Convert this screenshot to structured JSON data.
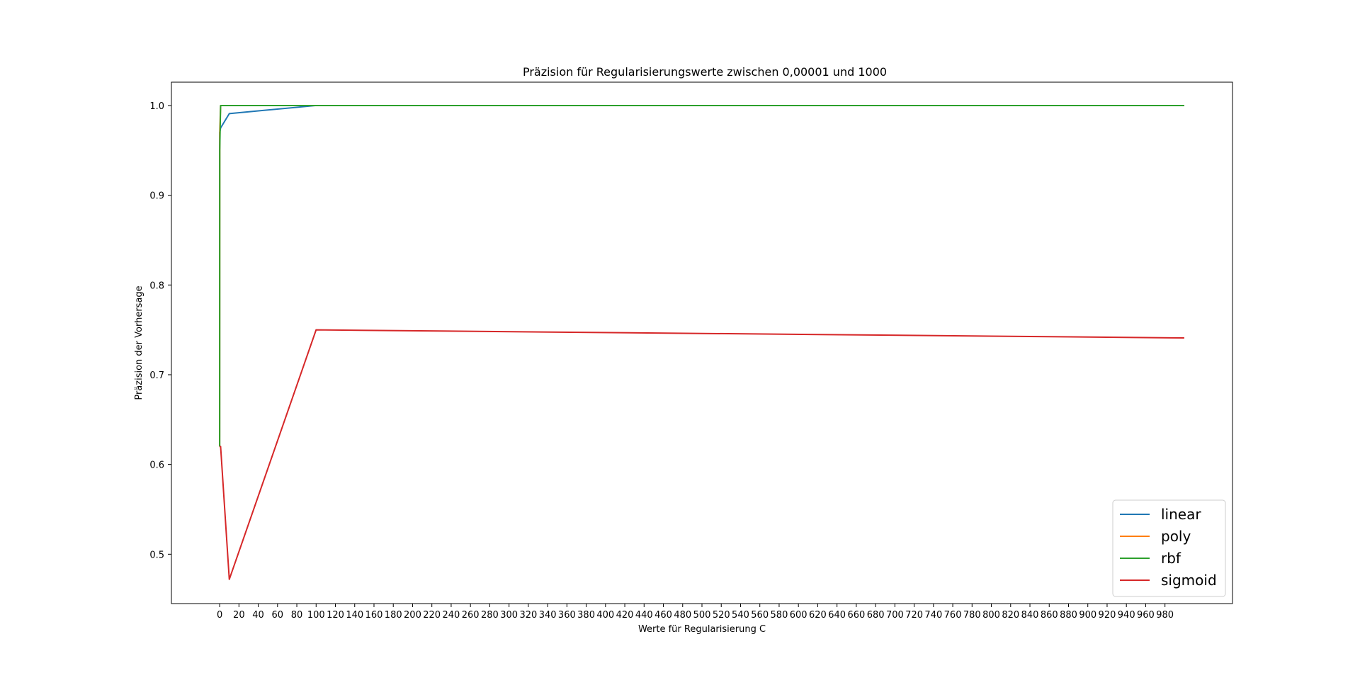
{
  "chart_data": {
    "type": "line",
    "title": "Präzision für Regularisierungswerte zwischen 0,00001 und 1000",
    "xlabel": "Werte für Regularisierung C",
    "ylabel": "Präzision der Vorhersage",
    "xlim": [
      -50,
      1050
    ],
    "ylim": [
      0.445,
      1.026
    ],
    "x_ticks": [
      0,
      20,
      40,
      60,
      80,
      100,
      120,
      140,
      160,
      180,
      200,
      220,
      240,
      260,
      280,
      300,
      320,
      340,
      360,
      380,
      400,
      420,
      440,
      460,
      480,
      500,
      520,
      540,
      560,
      580,
      600,
      620,
      640,
      660,
      680,
      700,
      720,
      740,
      760,
      780,
      800,
      820,
      840,
      860,
      880,
      900,
      920,
      940,
      960,
      980
    ],
    "y_ticks": [
      0.5,
      0.6,
      0.7,
      0.8,
      0.9,
      1.0
    ],
    "y_tick_labels": [
      "0.5",
      "0.6",
      "0.7",
      "0.8",
      "0.9",
      "1.0"
    ],
    "grid": false,
    "legend_position": "bottom-right",
    "x": [
      1e-05,
      0.0001,
      0.001,
      0.01,
      0.1,
      1,
      10,
      100,
      1000
    ],
    "series": [
      {
        "name": "linear",
        "color": "#1f77b4",
        "values": [
          0.62,
          0.62,
          0.62,
          0.95,
          0.97,
          0.975,
          0.991,
          1.0,
          1.0
        ]
      },
      {
        "name": "poly",
        "color": "#ff7f0e",
        "values": [
          0.62,
          0.62,
          0.62,
          0.62,
          0.97,
          1.0,
          1.0,
          1.0,
          1.0
        ]
      },
      {
        "name": "rbf",
        "color": "#2ca02c",
        "values": [
          0.62,
          0.62,
          0.62,
          0.62,
          0.95,
          1.0,
          1.0,
          1.0,
          1.0
        ]
      },
      {
        "name": "sigmoid",
        "color": "#d62728",
        "values": [
          0.62,
          0.62,
          0.62,
          0.62,
          0.62,
          0.62,
          0.472,
          0.75,
          0.741
        ]
      }
    ]
  }
}
